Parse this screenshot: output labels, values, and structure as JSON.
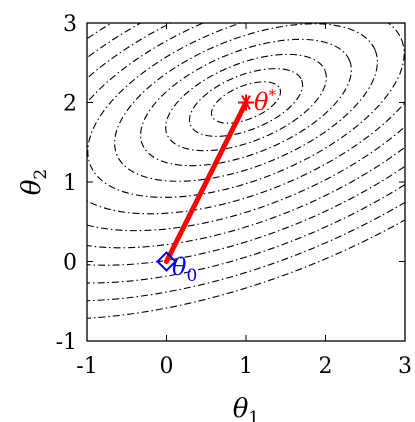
{
  "chart_data": {
    "type": "contour",
    "title": "",
    "xlabel": "θ",
    "xlabel_sub": "1",
    "ylabel": "θ",
    "ylabel_sub": "2",
    "xlim": [
      -1,
      3
    ],
    "ylim": [
      -1,
      3
    ],
    "xticks": [
      "-1",
      "0",
      "1",
      "2",
      "3"
    ],
    "yticks": [
      "-1",
      "0",
      "1",
      "2",
      "3"
    ],
    "grid": false,
    "contours": {
      "center": [
        1,
        2
      ],
      "line_style": "dash-dot",
      "color": "#000000",
      "levels": 13
    },
    "path": {
      "color": "#ff0000",
      "points": [
        [
          0,
          0
        ],
        [
          1,
          2
        ]
      ]
    },
    "start_marker": {
      "x": 0,
      "y": 0,
      "shape": "diamond",
      "color": "#0000ff",
      "label": "θ",
      "label_sub": "0"
    },
    "end_marker": {
      "x": 1,
      "y": 2,
      "shape": "asterisk",
      "color": "#ff0000",
      "label": "θ",
      "label_sup": "*"
    }
  }
}
